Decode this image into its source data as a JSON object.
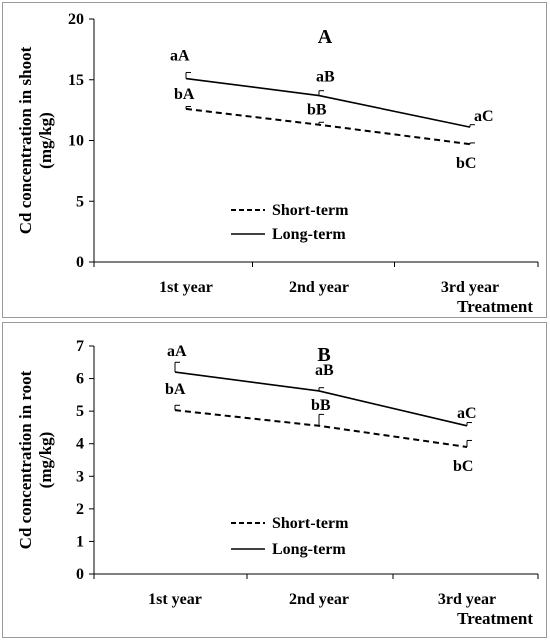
{
  "chart_data": [
    {
      "type": "line",
      "title": "A",
      "ylabel": "Cd concentration in shoot (mg/kg)",
      "ylabel_lines": [
        "Cd concentration in shoot",
        "(mg/kg)"
      ],
      "xlabel": "Treatment",
      "categories": [
        "1st year",
        "2nd year",
        "3rd year"
      ],
      "ylim": [
        0,
        20
      ],
      "yticks": [
        "0",
        "5",
        "10",
        "15",
        "20"
      ],
      "grid": false,
      "legend_position": "center",
      "series": [
        {
          "name": "Short-term",
          "style": "dashed",
          "values": [
            12.6,
            11.3,
            9.7
          ],
          "errors": [
            0.2,
            0.2,
            0.1
          ],
          "labels": [
            "bA",
            "bB",
            "bC"
          ]
        },
        {
          "name": "Long-term",
          "style": "solid",
          "values": [
            15.1,
            13.7,
            11.1
          ],
          "errors": [
            0.5,
            0.4,
            0.2
          ],
          "labels": [
            "aA",
            "aB",
            "aC"
          ]
        }
      ]
    },
    {
      "type": "line",
      "title": "B",
      "ylabel": "Cd concentration in root (mg/kg)",
      "ylabel_lines": [
        "Cd concentration in root",
        "(mg/kg)"
      ],
      "xlabel": "Treatment",
      "categories": [
        "1st year",
        "2nd year",
        "3rd year"
      ],
      "ylim": [
        0,
        7
      ],
      "yticks": [
        "0",
        "1",
        "2",
        "3",
        "4",
        "5",
        "6",
        "7"
      ],
      "grid": false,
      "legend_position": "center",
      "series": [
        {
          "name": "Short-term",
          "style": "dashed",
          "values": [
            5.03,
            4.55,
            3.9
          ],
          "errors": [
            0.15,
            0.35,
            0.2
          ],
          "labels": [
            "bA",
            "bB",
            "bC"
          ]
        },
        {
          "name": "Long-term",
          "style": "solid",
          "values": [
            6.2,
            5.62,
            4.55
          ],
          "errors": [
            0.3,
            0.1,
            0.1
          ],
          "labels": [
            "aA",
            "aB",
            "aC"
          ]
        }
      ]
    }
  ]
}
